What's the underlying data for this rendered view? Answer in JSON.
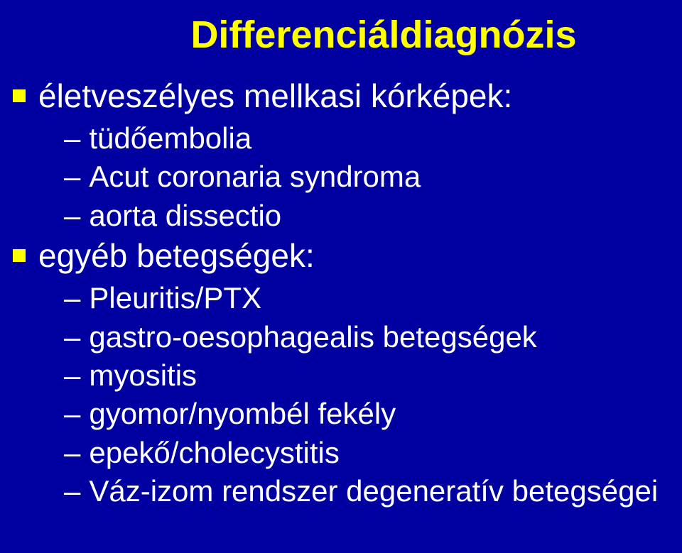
{
  "background_color": "#0000a0",
  "title_color": "#ffff00",
  "bullet_marker_color": "#ffff00",
  "text_color": "#ffffff",
  "title_fontsize": 54,
  "lvl1_fontsize": 46,
  "lvl2_fontsize": 42,
  "title": "Differenciáldiagnózis",
  "items": [
    {
      "label": "életveszélyes mellkasi kórképek:",
      "children": [
        {
          "label": "tüdőembolia"
        },
        {
          "label": "Acut coronaria syndroma"
        },
        {
          "label": "aorta dissectio"
        }
      ]
    },
    {
      "label": "egyéb betegségek:",
      "children": [
        {
          "label": "Pleuritis/PTX"
        },
        {
          "label": "gastro-oesophagealis betegségek"
        },
        {
          "label": "myositis"
        },
        {
          "label": "gyomor/nyombél fekély"
        },
        {
          "label": "epekő/cholecystitis"
        },
        {
          "label": "Váz-izom rendszer degeneratív betegségei"
        }
      ]
    }
  ]
}
